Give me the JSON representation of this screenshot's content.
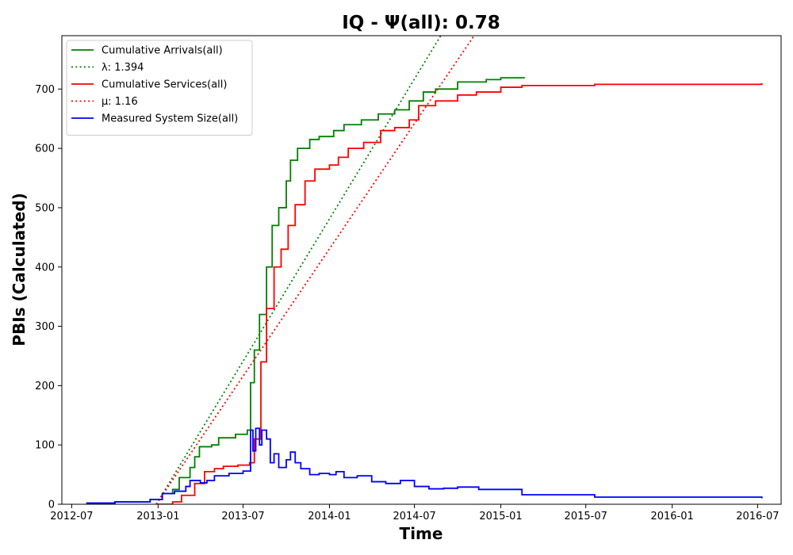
{
  "chart_data": {
    "type": "line",
    "title": "IQ -  Ψ(all): 0.78",
    "xlabel": "Time",
    "ylabel": "PBIs (Calculated)",
    "x_tick_labels": [
      "2012-07",
      "2013-01",
      "2013-07",
      "2014-01",
      "2014-07",
      "2015-01",
      "2015-07",
      "2016-01",
      "2016-07"
    ],
    "x_ticks": [
      "2012-07-01",
      "2013-01-01",
      "2013-07-01",
      "2014-01-01",
      "2014-07-01",
      "2015-01-01",
      "2015-07-01",
      "2016-01-01",
      "2016-07-01"
    ],
    "xlim": [
      "2012-06-10",
      "2016-08-20"
    ],
    "y_ticks": [
      0,
      100,
      200,
      300,
      400,
      500,
      600,
      700
    ],
    "ylim": [
      0,
      790
    ],
    "grid": false,
    "legend_position": "top-left",
    "series": [
      {
        "name": "Cumulative Arrivals(all)",
        "color": "#008000",
        "style": "solid",
        "step": true,
        "points": [
          [
            "2012-08-01",
            2
          ],
          [
            "2012-10-01",
            4
          ],
          [
            "2012-12-15",
            8
          ],
          [
            "2013-01-10",
            18
          ],
          [
            "2013-02-01",
            25
          ],
          [
            "2013-02-15",
            45
          ],
          [
            "2013-03-10",
            62
          ],
          [
            "2013-03-20",
            80
          ],
          [
            "2013-03-30",
            97
          ],
          [
            "2013-04-25",
            100
          ],
          [
            "2013-05-10",
            112
          ],
          [
            "2013-06-15",
            118
          ],
          [
            "2013-07-10",
            125
          ],
          [
            "2013-07-17",
            205
          ],
          [
            "2013-07-25",
            260
          ],
          [
            "2013-08-05",
            320
          ],
          [
            "2013-08-20",
            400
          ],
          [
            "2013-09-01",
            470
          ],
          [
            "2013-09-15",
            500
          ],
          [
            "2013-10-01",
            545
          ],
          [
            "2013-10-10",
            580
          ],
          [
            "2013-10-25",
            600
          ],
          [
            "2013-11-20",
            615
          ],
          [
            "2013-12-10",
            620
          ],
          [
            "2014-01-10",
            630
          ],
          [
            "2014-02-01",
            640
          ],
          [
            "2014-03-10",
            648
          ],
          [
            "2014-04-15",
            658
          ],
          [
            "2014-05-20",
            665
          ],
          [
            "2014-06-20",
            680
          ],
          [
            "2014-07-20",
            695
          ],
          [
            "2014-08-15",
            700
          ],
          [
            "2014-10-01",
            712
          ],
          [
            "2014-12-01",
            716
          ],
          [
            "2015-01-01",
            719
          ],
          [
            "2015-02-20",
            720
          ]
        ]
      },
      {
        "name": "λ: 1.394",
        "color": "#008000",
        "style": "dotted",
        "step": false,
        "points": [
          [
            "2012-12-28",
            0
          ],
          [
            "2014-08-26",
            790
          ]
        ]
      },
      {
        "name": "Cumulative Services(all)",
        "color": "#ff0000",
        "style": "solid",
        "step": true,
        "points": [
          [
            "2012-12-28",
            0
          ],
          [
            "2013-02-01",
            4
          ],
          [
            "2013-02-20",
            15
          ],
          [
            "2013-03-20",
            35
          ],
          [
            "2013-04-10",
            55
          ],
          [
            "2013-05-01",
            60
          ],
          [
            "2013-05-20",
            64
          ],
          [
            "2013-06-20",
            66
          ],
          [
            "2013-07-15",
            70
          ],
          [
            "2013-07-25",
            110
          ],
          [
            "2013-08-08",
            240
          ],
          [
            "2013-08-20",
            330
          ],
          [
            "2013-09-05",
            400
          ],
          [
            "2013-09-20",
            430
          ],
          [
            "2013-10-05",
            470
          ],
          [
            "2013-10-20",
            505
          ],
          [
            "2013-11-10",
            545
          ],
          [
            "2013-12-01",
            565
          ],
          [
            "2014-01-01",
            572
          ],
          [
            "2014-01-20",
            585
          ],
          [
            "2014-02-10",
            600
          ],
          [
            "2014-03-15",
            610
          ],
          [
            "2014-04-20",
            630
          ],
          [
            "2014-05-20",
            635
          ],
          [
            "2014-06-20",
            648
          ],
          [
            "2014-07-10",
            672
          ],
          [
            "2014-08-15",
            680
          ],
          [
            "2014-10-01",
            690
          ],
          [
            "2014-11-10",
            695
          ],
          [
            "2015-01-01",
            703
          ],
          [
            "2015-02-15",
            706
          ],
          [
            "2015-07-20",
            708
          ],
          [
            "2016-07-10",
            710
          ]
        ]
      },
      {
        "name": "μ: 1.16",
        "color": "#ff0000",
        "style": "dotted",
        "step": false,
        "points": [
          [
            "2012-12-28",
            0
          ],
          [
            "2014-11-05",
            790
          ]
        ]
      },
      {
        "name": "Measured System Size(all)",
        "color": "#0000ff",
        "style": "solid",
        "step": true,
        "points": [
          [
            "2012-08-01",
            2
          ],
          [
            "2012-10-01",
            4
          ],
          [
            "2012-12-15",
            8
          ],
          [
            "2013-01-10",
            18
          ],
          [
            "2013-02-05",
            22
          ],
          [
            "2013-03-01",
            30
          ],
          [
            "2013-03-10",
            40
          ],
          [
            "2013-04-01",
            36
          ],
          [
            "2013-04-15",
            40
          ],
          [
            "2013-05-01",
            48
          ],
          [
            "2013-06-01",
            52
          ],
          [
            "2013-07-01",
            56
          ],
          [
            "2013-07-17",
            125
          ],
          [
            "2013-07-22",
            90
          ],
          [
            "2013-07-28",
            128
          ],
          [
            "2013-08-05",
            100
          ],
          [
            "2013-08-10",
            125
          ],
          [
            "2013-08-20",
            110
          ],
          [
            "2013-08-28",
            70
          ],
          [
            "2013-09-05",
            85
          ],
          [
            "2013-09-15",
            62
          ],
          [
            "2013-10-01",
            75
          ],
          [
            "2013-10-10",
            88
          ],
          [
            "2013-10-20",
            70
          ],
          [
            "2013-11-01",
            60
          ],
          [
            "2013-11-20",
            50
          ],
          [
            "2013-12-10",
            52
          ],
          [
            "2014-01-01",
            50
          ],
          [
            "2014-01-15",
            55
          ],
          [
            "2014-02-01",
            45
          ],
          [
            "2014-03-01",
            48
          ],
          [
            "2014-04-01",
            38
          ],
          [
            "2014-05-01",
            35
          ],
          [
            "2014-06-01",
            40
          ],
          [
            "2014-07-01",
            30
          ],
          [
            "2014-08-01",
            26
          ],
          [
            "2014-09-01",
            27
          ],
          [
            "2014-10-01",
            29
          ],
          [
            "2014-11-15",
            25
          ],
          [
            "2015-01-01",
            25
          ],
          [
            "2015-02-15",
            16
          ],
          [
            "2015-07-20",
            12
          ],
          [
            "2016-07-10",
            10
          ]
        ]
      }
    ]
  }
}
